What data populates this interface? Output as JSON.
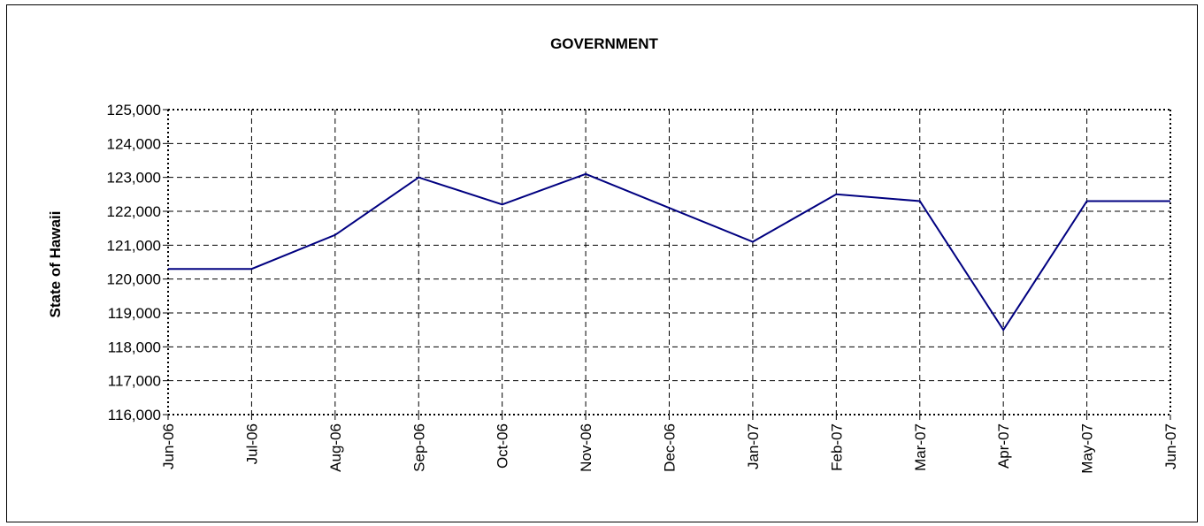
{
  "chart_data": {
    "type": "line",
    "title": "GOVERNMENT",
    "xlabel": "",
    "ylabel": "State of Hawaii",
    "categories": [
      "Jun-06",
      "Jul-06",
      "Aug-06",
      "Sep-06",
      "Oct-06",
      "Nov-06",
      "Dec-06",
      "Jan-07",
      "Feb-07",
      "Mar-07",
      "Apr-07",
      "May-07",
      "Jun-07"
    ],
    "series": [
      {
        "values": [
          120300,
          120300,
          121300,
          123000,
          122200,
          123100,
          122100,
          121100,
          122500,
          122300,
          118500,
          122300,
          122300
        ],
        "color": "#000080"
      }
    ],
    "ylim": [
      116000,
      125000
    ],
    "yticks": [
      116000,
      117000,
      118000,
      119000,
      120000,
      121000,
      122000,
      123000,
      124000,
      125000
    ],
    "ytick_labels": [
      "116,000",
      "117,000",
      "118,000",
      "119,000",
      "120,000",
      "121,000",
      "122,000",
      "123,000",
      "124,000",
      "125,000"
    ],
    "grid": true,
    "grid_style": "dashed",
    "legend": "none"
  }
}
